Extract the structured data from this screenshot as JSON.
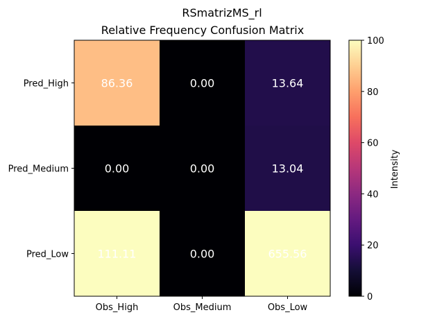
{
  "chart_data": {
    "type": "heatmap",
    "title": "RSmatrizMS_rl",
    "subtitle": "Relative Frequency Confusion Matrix",
    "x_categories": [
      "Obs_High",
      "Obs_Medium",
      "Obs_Low"
    ],
    "y_categories": [
      "Pred_High",
      "Pred_Medium",
      "Pred_Low"
    ],
    "values": [
      [
        86.36,
        0.0,
        13.64
      ],
      [
        0.0,
        0.0,
        13.04
      ],
      [
        111.11,
        0.0,
        655.56
      ]
    ],
    "cell_labels": [
      [
        "86.36",
        "0.00",
        "13.64"
      ],
      [
        "0.00",
        "0.00",
        "13.04"
      ],
      [
        "111.11",
        "0.00",
        "655.56"
      ]
    ],
    "colormap": "magma",
    "color_range": [
      0,
      100
    ],
    "colorbar": {
      "label": "Intensity",
      "ticks": [
        0,
        20,
        40,
        60,
        80,
        100
      ],
      "tick_labels": [
        "0",
        "20",
        "40",
        "60",
        "80",
        "100"
      ]
    },
    "label_color": "#ffffff"
  }
}
